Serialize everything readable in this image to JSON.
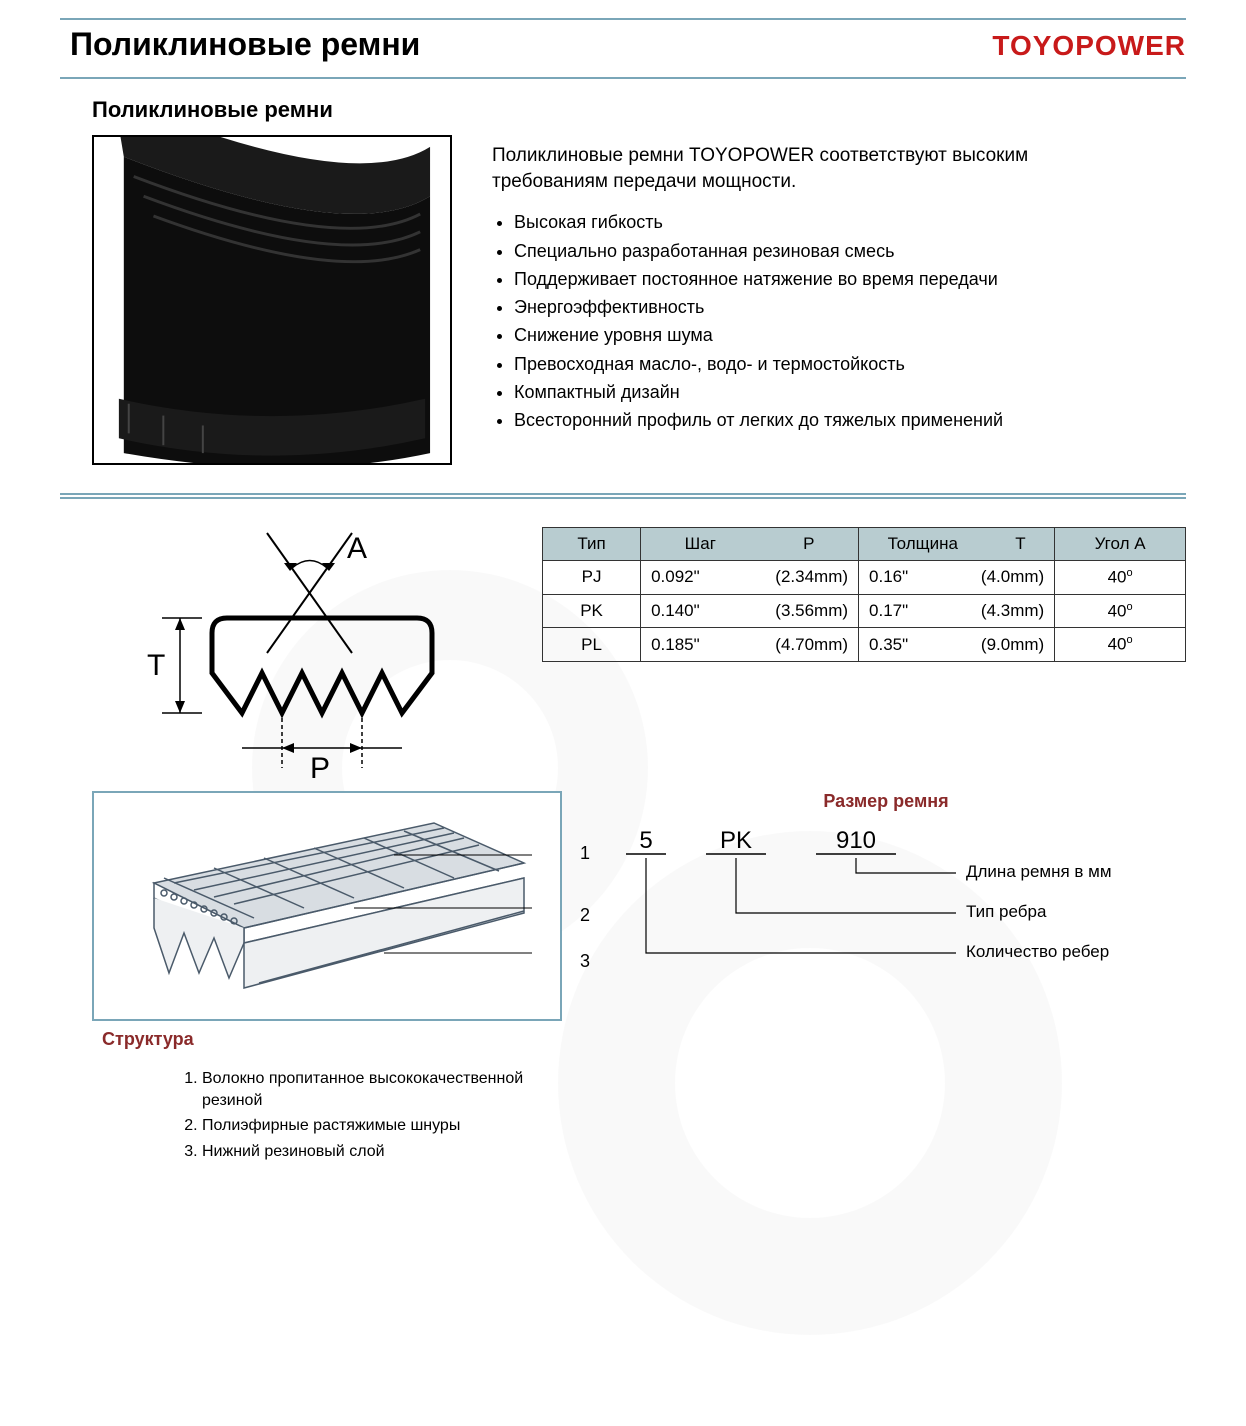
{
  "brand": {
    "name": "TOYOPOWER",
    "color": "#c81a1a"
  },
  "page_title": "Поликлиновые ремни",
  "section_title": "Поликлиновые ремни",
  "accent_color": "#7aa6b8",
  "description": {
    "text": "Поликлиновые ремни TOYOPOWER соответствуют высоким требованиям передачи мощности.",
    "bullets": [
      "Высокая гибкость",
      "Специально разработанная резиновая смесь",
      "Поддерживает постоянное натяжение во время передачи",
      "Энергоэффективность",
      "Снижение уровня шума",
      "Превосходная масло-, водо- и термостойкость",
      "Компактный дизайн",
      "Всесторонний профиль от легких до тяжелых применений"
    ]
  },
  "profile_diagram": {
    "label_A": "A",
    "label_T": "T",
    "label_P": "P"
  },
  "spec_table": {
    "header_bg": "#b8ccd0",
    "columns": {
      "type": "Тип",
      "pitch": "Шаг",
      "pitch_sym": "P",
      "thickness": "Толщина",
      "thickness_sym": "T",
      "angle": "Угол A"
    },
    "rows": [
      {
        "type": "PJ",
        "pitch_in": "0.092\"",
        "pitch_mm": "(2.34mm)",
        "thick_in": "0.16\"",
        "thick_mm": "(4.0mm)",
        "angle": "40°"
      },
      {
        "type": "PK",
        "pitch_in": "0.140\"",
        "pitch_mm": "(3.56mm)",
        "thick_in": "0.17\"",
        "thick_mm": "(4.3mm)",
        "angle": "40°"
      },
      {
        "type": "PL",
        "pitch_in": "0.185\"",
        "pitch_mm": "(4.70mm)",
        "thick_in": "0.35\"",
        "thick_mm": "(9.0mm)",
        "angle": "40°"
      }
    ]
  },
  "size_diagram": {
    "title": "Размер ремня",
    "example": {
      "ribs": "5",
      "type": "PK",
      "length": "910"
    },
    "labels": {
      "length": "Длина ремня в мм",
      "rib_type": "Тип ребра",
      "rib_count": "Количество ребер"
    }
  },
  "structure": {
    "title": "Структура",
    "callouts": [
      "1",
      "2",
      "3"
    ],
    "items": [
      "Волокно пропитанное высококачественной резиной",
      "Полиэфирные растяжимые шнуры",
      "Нижний резиновый слой"
    ]
  }
}
